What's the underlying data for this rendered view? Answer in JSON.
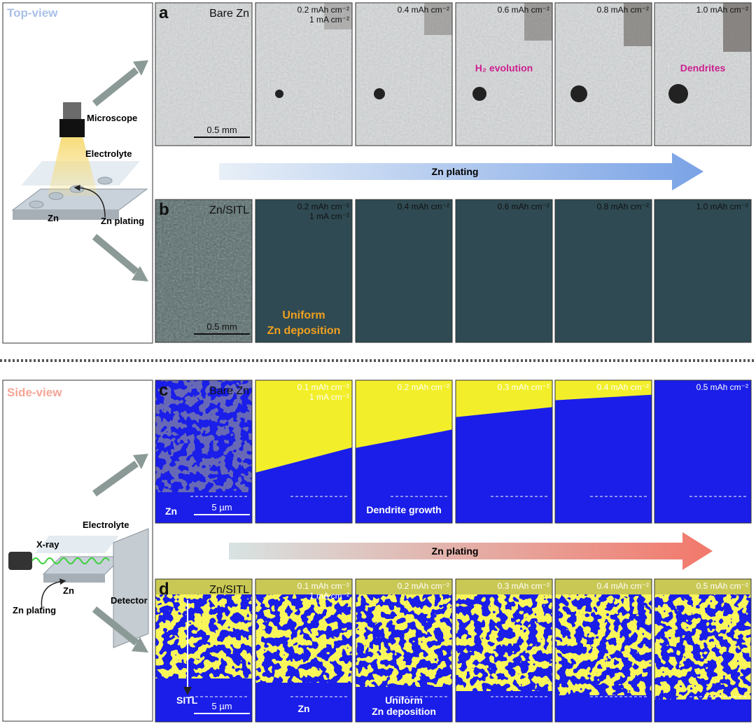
{
  "top_view": {
    "label": "Top-view",
    "schematic": {
      "device": "Microscope",
      "medium": "Electrolyte",
      "substrate": "Zn",
      "process": "Zn plating"
    },
    "arrow": "Zn plating",
    "rows": [
      {
        "panel": "a",
        "title": "Bare Zn",
        "scale_bar": "0.5 mm",
        "frames": [
          {
            "lines": [
              "0.2 mAh cm⁻²",
              "1 mA cm⁻²"
            ]
          },
          {
            "lines": [
              "0.4 mAh cm⁻²"
            ]
          },
          {
            "lines": [
              "0.6 mAh cm⁻²"
            ],
            "annotation": [
              "H₂ evolution"
            ]
          },
          {
            "lines": [
              "0.8 mAh cm⁻²"
            ]
          },
          {
            "lines": [
              "1.0 mAh cm⁻²"
            ],
            "annotation": [
              "Dendrites"
            ]
          }
        ]
      },
      {
        "panel": "b",
        "title": "Zn/SITL",
        "scale_bar": "0.5 mm",
        "frames": [
          {
            "lines": [
              "0.2 mAh cm⁻²",
              "1 mA cm⁻²"
            ],
            "annotation": [
              "Uniform",
              "Zn deposition"
            ]
          },
          {
            "lines": [
              "0.4 mAh cm⁻²"
            ]
          },
          {
            "lines": [
              "0.6 mAh cm⁻²"
            ]
          },
          {
            "lines": [
              "0.8 mAh cm⁻²"
            ]
          },
          {
            "lines": [
              "1.0 mAh cm⁻²"
            ]
          }
        ]
      }
    ]
  },
  "side_view": {
    "label": "Side-view",
    "schematic": {
      "source": "X-ray",
      "medium": "Electrolyte",
      "substrate": "Zn",
      "detector": "Detector",
      "process": "Zn plating"
    },
    "arrow": "Zn plating",
    "rows": [
      {
        "panel": "c",
        "title": "Bare Zn",
        "scale_bar": "5 µm",
        "substrate_label": "Zn",
        "frames": [
          {
            "lines": [
              "0.1 mAh cm⁻²",
              "1 mA cm⁻²"
            ]
          },
          {
            "lines": [
              "0.2 mAh cm⁻²"
            ],
            "annotation": [
              "Dendrite growth"
            ]
          },
          {
            "lines": [
              "0.3 mAh cm⁻²"
            ]
          },
          {
            "lines": [
              "0.4 mAh cm⁻²"
            ]
          },
          {
            "lines": [
              "0.5 mAh cm⁻²"
            ]
          }
        ]
      },
      {
        "panel": "d",
        "title": "Zn/SITL",
        "scale_bar": "5 µm",
        "substrate_label": "SITL",
        "frames": [
          {
            "lines": [
              "0.1 mAh cm⁻²",
              "1 mA cm⁻²"
            ],
            "annotation": [
              "Zn"
            ]
          },
          {
            "lines": [
              "0.2 mAh cm⁻²"
            ],
            "annotation": [
              "Uniform",
              "Zn deposition"
            ]
          },
          {
            "lines": [
              "0.3 mAh cm⁻²"
            ]
          },
          {
            "lines": [
              "0.4 mAh cm⁻²"
            ]
          },
          {
            "lines": [
              "0.5 mAh cm⁻²"
            ]
          }
        ]
      }
    ]
  }
}
